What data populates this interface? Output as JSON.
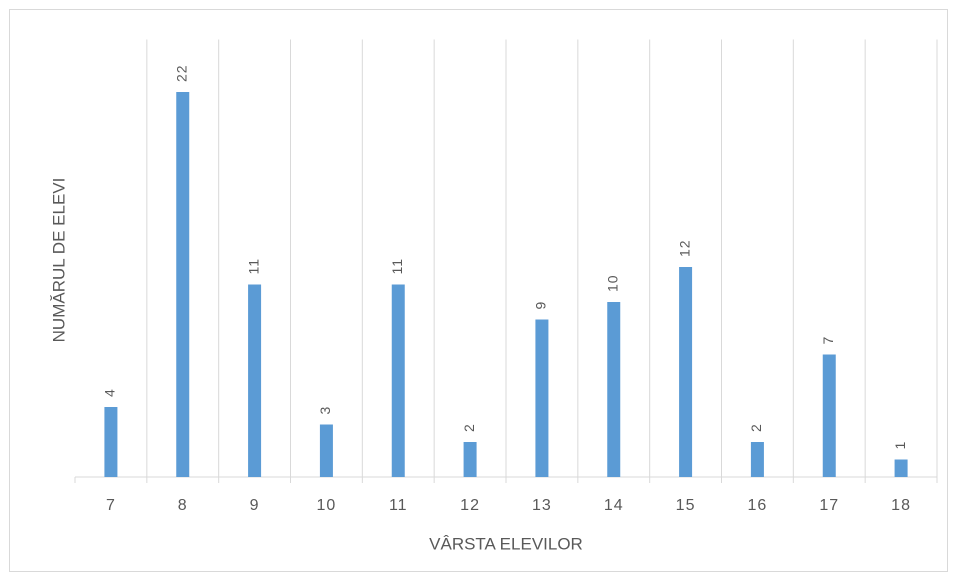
{
  "chart_data": {
    "type": "bar",
    "x_label": "VÂRSTA ELEVILOR",
    "y_label": "NUMĂRUL DE ELEVI",
    "categories": [
      "7",
      "8",
      "9",
      "10",
      "11",
      "12",
      "13",
      "14",
      "15",
      "16",
      "17",
      "18"
    ],
    "values": [
      4,
      22,
      11,
      3,
      11,
      2,
      9,
      10,
      12,
      2,
      7,
      1
    ],
    "color": "#5b9bd5",
    "ylim": [
      0,
      25
    ],
    "grid": true
  }
}
